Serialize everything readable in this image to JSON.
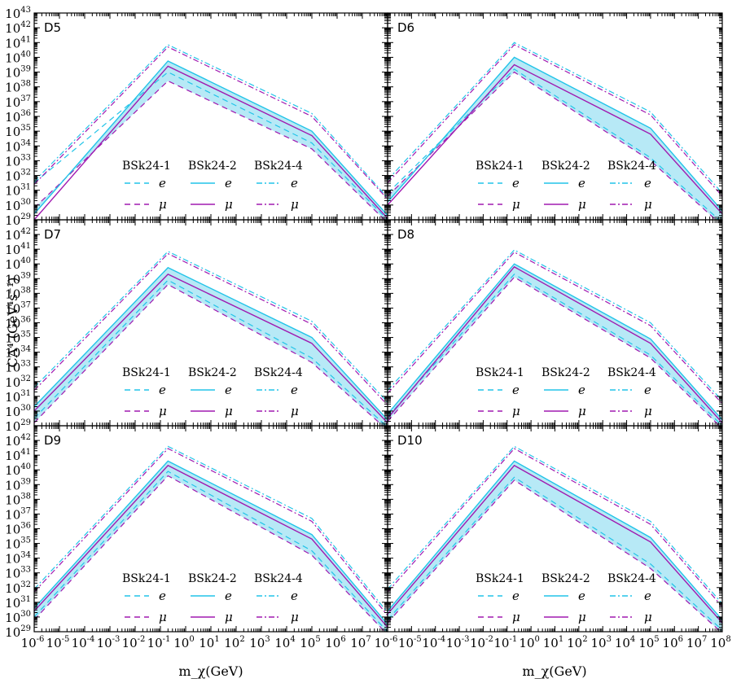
{
  "figure": {
    "ylabel": "CΛ⁴ (GeV⁴s⁻¹)",
    "xlabel": "m_χ(GeV)"
  },
  "colors": {
    "cyan": "#22c4e8",
    "magenta": "#a01ab0",
    "band": "#b7e9f6"
  },
  "chart_data": {
    "type": "line",
    "x_scale": "log",
    "y_scale": "log",
    "xlim": [
      1e-06,
      100000000.0
    ],
    "ylim_log10": [
      29,
      43
    ],
    "x_tick_exponents": [
      -6,
      -5,
      -4,
      -3,
      -2,
      -1,
      0,
      1,
      2,
      3,
      4,
      5,
      6,
      7,
      8
    ],
    "y_tick_exponents_top": [
      29,
      30,
      31,
      32,
      33,
      34,
      35,
      36,
      37,
      38,
      39,
      40,
      41,
      42,
      43
    ],
    "y_tick_exponents_other": [
      29,
      30,
      31,
      32,
      33,
      34,
      35,
      36,
      37,
      38,
      39,
      40,
      41,
      42
    ],
    "legend": {
      "groups": [
        "BSk24-1",
        "BSk24-2",
        "BSk24-4"
      ],
      "symbols": [
        "e",
        "μ"
      ]
    },
    "series_styles": [
      {
        "model": "BSk24-1",
        "lepton": "e",
        "color": "cyan",
        "dash": "dashed"
      },
      {
        "model": "BSk24-1",
        "lepton": "μ",
        "color": "magenta",
        "dash": "dashed"
      },
      {
        "model": "BSk24-2",
        "lepton": "e",
        "color": "cyan",
        "dash": "solid"
      },
      {
        "model": "BSk24-2",
        "lepton": "μ",
        "color": "magenta",
        "dash": "solid"
      },
      {
        "model": "BSk24-4",
        "lepton": "e",
        "color": "cyan",
        "dash": "dashdot"
      },
      {
        "model": "BSk24-4",
        "lepton": "μ",
        "color": "magenta",
        "dash": "dashdot"
      }
    ],
    "panels": [
      {
        "label": "D5",
        "curves_log10": {
          "left": [
            31.5,
            29.8,
            29.4,
            29.0,
            31.6,
            31.4
          ],
          "peak": [
            39.0,
            38.4,
            39.75,
            39.4,
            40.85,
            40.7
          ],
          "knee": [
            34.2,
            33.8,
            35.0,
            34.7,
            36.2,
            36.0
          ],
          "right": [
            29.0,
            28.8,
            29.3,
            29.1,
            30.5,
            30.4
          ]
        }
      },
      {
        "label": "D6",
        "curves_log10": {
          "left": [
            30.8,
            30.6,
            30.2,
            30.0,
            31.7,
            31.5
          ],
          "peak": [
            39.2,
            39.0,
            40.0,
            39.5,
            41.0,
            40.85
          ],
          "knee": [
            33.2,
            33.0,
            35.2,
            34.8,
            36.3,
            36.1
          ],
          "right": [
            28.8,
            28.6,
            29.6,
            29.4,
            30.8,
            30.6
          ]
        }
      },
      {
        "label": "D7",
        "curves_log10": {
          "left": [
            29.5,
            29.2,
            30.3,
            30.0,
            31.6,
            31.4
          ],
          "peak": [
            38.9,
            38.6,
            39.75,
            39.3,
            40.85,
            40.7
          ],
          "knee": [
            33.6,
            33.3,
            35.0,
            34.6,
            36.1,
            35.9
          ],
          "right": [
            28.9,
            28.7,
            29.4,
            29.2,
            30.6,
            30.4
          ]
        }
      },
      {
        "label": "D8",
        "curves_log10": {
          "left": [
            29.6,
            29.3,
            29.8,
            29.5,
            31.4,
            31.2
          ],
          "peak": [
            39.3,
            39.1,
            40.0,
            39.8,
            40.95,
            40.8
          ],
          "knee": [
            33.8,
            33.6,
            34.9,
            34.6,
            36.0,
            35.8
          ],
          "right": [
            29.0,
            28.8,
            29.4,
            29.2,
            30.7,
            30.5
          ]
        }
      },
      {
        "label": "D9",
        "curves_log10": {
          "left": [
            30.0,
            29.8,
            30.6,
            30.4,
            31.9,
            31.7
          ],
          "peak": [
            39.9,
            39.6,
            40.6,
            40.3,
            41.6,
            41.45
          ],
          "knee": [
            34.5,
            34.2,
            35.6,
            35.3,
            36.7,
            36.5
          ],
          "right": [
            29.0,
            28.8,
            29.5,
            29.3,
            30.3,
            30.1
          ]
        }
      },
      {
        "label": "D10",
        "curves_log10": {
          "left": [
            29.8,
            29.6,
            30.4,
            30.2,
            31.9,
            31.7
          ],
          "peak": [
            39.5,
            39.3,
            40.6,
            40.3,
            41.6,
            41.45
          ],
          "knee": [
            33.6,
            33.3,
            35.4,
            35.1,
            36.5,
            36.3
          ],
          "right": [
            29.1,
            28.9,
            29.8,
            29.6,
            30.9,
            30.7
          ]
        }
      }
    ]
  }
}
